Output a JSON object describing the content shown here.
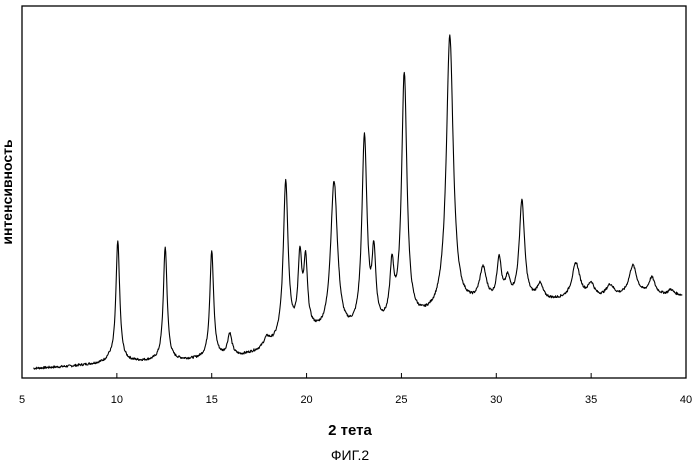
{
  "chart_data": {
    "type": "line",
    "xlabel": "2 тета",
    "ylabel": "интенсивность",
    "caption": "ФИГ.2",
    "xlim": [
      5,
      40
    ],
    "ylim": [
      0,
      100
    ],
    "x_ticks": [
      5,
      10,
      15,
      20,
      25,
      30,
      35,
      40
    ],
    "grid": false,
    "legend": "none",
    "baseline": [
      [
        5.6,
        1.0
      ],
      [
        7.5,
        1.6
      ],
      [
        9.5,
        2.6
      ],
      [
        11,
        2.9
      ],
      [
        13,
        3.1
      ],
      [
        14.5,
        3.6
      ],
      [
        16.5,
        4.4
      ],
      [
        17.5,
        5.7
      ],
      [
        18.3,
        7.5
      ],
      [
        19.0,
        9.5
      ],
      [
        20.2,
        11.0
      ],
      [
        21.0,
        9.8
      ],
      [
        22.0,
        10.0
      ],
      [
        22.5,
        10.4
      ],
      [
        23.5,
        11.5
      ],
      [
        24.5,
        12.6
      ],
      [
        25.5,
        13.8
      ],
      [
        26.5,
        15.5
      ],
      [
        27.5,
        17.0
      ],
      [
        28.5,
        18.5
      ],
      [
        29.5,
        19.2
      ],
      [
        30.5,
        19.6
      ],
      [
        31.5,
        20.0
      ],
      [
        32.5,
        20.4
      ],
      [
        33.5,
        20.8
      ],
      [
        34.5,
        21.0
      ],
      [
        35.5,
        21.3
      ],
      [
        36.5,
        21.6
      ],
      [
        37.5,
        22.0
      ],
      [
        38.5,
        22.3
      ],
      [
        39.5,
        22.5
      ],
      [
        39.8,
        22.3
      ]
    ],
    "peaks": [
      {
        "x": 9.6,
        "height": 0.8,
        "width": 0.15
      },
      {
        "x": 10.05,
        "height": 35.5,
        "width": 0.12
      },
      {
        "x": 12.55,
        "height": 33.5,
        "width": 0.12
      },
      {
        "x": 15.0,
        "height": 31.5,
        "width": 0.12
      },
      {
        "x": 15.95,
        "height": 6.5,
        "width": 0.14
      },
      {
        "x": 17.9,
        "height": 2.5,
        "width": 0.2
      },
      {
        "x": 18.9,
        "height": 46.0,
        "width": 0.15
      },
      {
        "x": 19.65,
        "height": 21.5,
        "width": 0.12
      },
      {
        "x": 19.95,
        "height": 19.5,
        "width": 0.12
      },
      {
        "x": 21.45,
        "height": 45.0,
        "width": 0.22
      },
      {
        "x": 23.05,
        "height": 56.5,
        "width": 0.16
      },
      {
        "x": 23.55,
        "height": 20.0,
        "width": 0.12
      },
      {
        "x": 24.5,
        "height": 15.5,
        "width": 0.13
      },
      {
        "x": 25.15,
        "height": 73.0,
        "width": 0.17
      },
      {
        "x": 27.55,
        "height": 81.0,
        "width": 0.22
      },
      {
        "x": 29.3,
        "height": 10.0,
        "width": 0.22
      },
      {
        "x": 30.15,
        "height": 12.5,
        "width": 0.14
      },
      {
        "x": 30.6,
        "height": 6.0,
        "width": 0.16
      },
      {
        "x": 31.35,
        "height": 29.5,
        "width": 0.17
      },
      {
        "x": 32.3,
        "height": 4.5,
        "width": 0.2
      },
      {
        "x": 34.2,
        "height": 10.5,
        "width": 0.25
      },
      {
        "x": 35.0,
        "height": 4.0,
        "width": 0.2
      },
      {
        "x": 36.0,
        "height": 3.5,
        "width": 0.25
      },
      {
        "x": 37.2,
        "height": 9.0,
        "width": 0.25
      },
      {
        "x": 38.2,
        "height": 5.0,
        "width": 0.2
      },
      {
        "x": 39.2,
        "height": 1.5,
        "width": 0.15
      }
    ]
  }
}
